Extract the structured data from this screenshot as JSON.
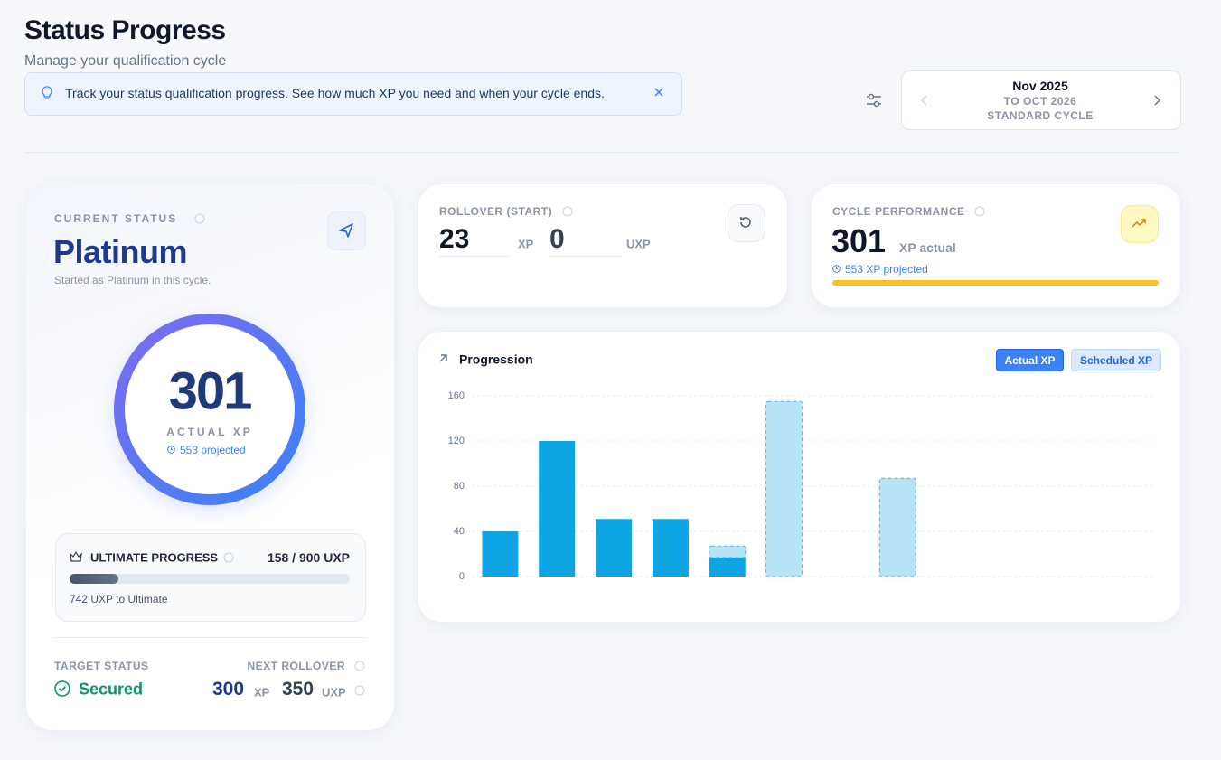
{
  "header": {
    "title": "Status Progress",
    "subtitle": "Manage your qualification cycle"
  },
  "banner": {
    "text": "Track your status qualification progress. See how much XP you need and when your cycle ends."
  },
  "cycle": {
    "month": "Nov 2025",
    "range": "TO OCT 2026",
    "type": "STANDARD CYCLE"
  },
  "status_card": {
    "label": "CURRENT STATUS",
    "status": "Platinum",
    "note": "Started as Platinum in this cycle.",
    "ring": {
      "value": "301",
      "label": "ACTUAL XP",
      "projected": "553 projected"
    },
    "ultimate": {
      "label": "ULTIMATE PROGRESS",
      "progress": "158 / 900 UXP",
      "remaining": "742 UXP to Ultimate"
    },
    "target": {
      "label": "TARGET STATUS",
      "value": "Secured"
    },
    "next_rollover": {
      "label": "NEXT ROLLOVER",
      "xp": "300",
      "xp_unit": "XP",
      "uxp": "350",
      "uxp_unit": "UXP"
    }
  },
  "rollover": {
    "label": "ROLLOVER (START)",
    "xp": "23",
    "xp_unit": "XP",
    "uxp": "0",
    "uxp_unit": "UXP"
  },
  "performance": {
    "label": "CYCLE PERFORMANCE",
    "value": "301",
    "unit": "XP actual",
    "projected": "553 XP projected"
  },
  "chart_data": {
    "type": "bar",
    "title": "Progression",
    "stacked": true,
    "categories": [
      null,
      null,
      null,
      null,
      null,
      null,
      null,
      null,
      null,
      null,
      null,
      null
    ],
    "series": [
      {
        "name": "Actual XP",
        "color": "#0ea5e4",
        "values": [
          40,
          120,
          51,
          51,
          17,
          null,
          null,
          null,
          null,
          null,
          null,
          null
        ]
      },
      {
        "name": "Scheduled XP",
        "color": "#b7e3f7",
        "values": [
          null,
          null,
          null,
          null,
          10,
          155,
          null,
          87,
          null,
          null,
          null,
          null
        ]
      }
    ],
    "ylim": [
      0,
      160
    ],
    "yticks": [
      0,
      40,
      80,
      120,
      160
    ],
    "grid": true
  }
}
